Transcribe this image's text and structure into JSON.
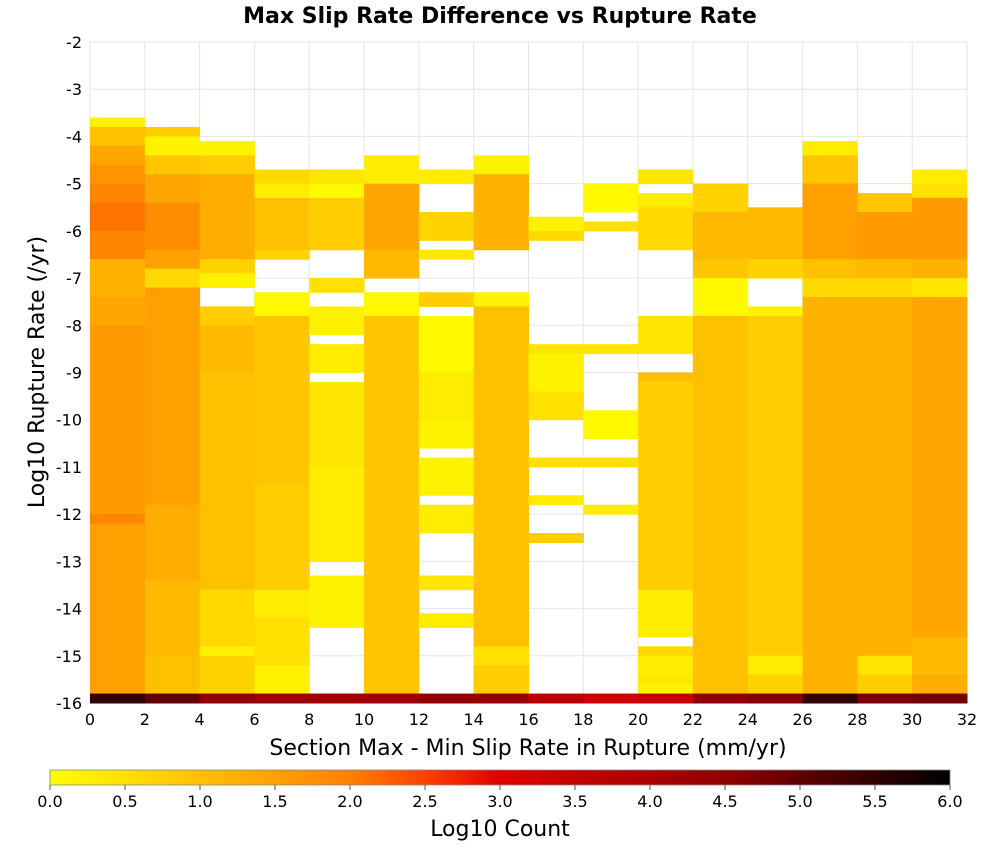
{
  "chart_data": {
    "type": "heatmap",
    "title": "Max Slip Rate Difference vs Rupture Rate",
    "xlabel": "Section Max - Min Slip Rate in Rupture (mm/yr)",
    "ylabel": "Log10 Rupture Rate (/yr)",
    "xlim": [
      0,
      32
    ],
    "ylim": [
      -16,
      -2
    ],
    "x_ticks": [
      "0",
      "2",
      "4",
      "6",
      "8",
      "10",
      "12",
      "14",
      "16",
      "18",
      "20",
      "22",
      "24",
      "26",
      "28",
      "30",
      "32"
    ],
    "y_ticks": [
      "-2",
      "-3",
      "-4",
      "-5",
      "-6",
      "-7",
      "-8",
      "-9",
      "-10",
      "-11",
      "-12",
      "-13",
      "-14",
      "-15",
      "-16"
    ],
    "x_bin_width": 2,
    "y_bin_height": 0.2,
    "bin_x_starts": [
      0,
      2,
      4,
      6,
      8,
      10,
      12,
      14,
      16,
      18,
      20,
      22,
      24,
      26,
      28,
      30
    ],
    "z_label": "Log10 Count",
    "z_range": [
      0,
      6
    ],
    "colorbar_ticks": [
      "0.0",
      "0.5",
      "1.0",
      "1.5",
      "2.0",
      "2.5",
      "3.0",
      "3.5",
      "4.0",
      "4.5",
      "5.0",
      "5.5",
      "6.0"
    ],
    "colorscale": [
      "#ffff00",
      "#ffc000",
      "#ff8000",
      "#ff4000",
      "#e00000",
      "#900000",
      "#000000"
    ],
    "grid": true,
    "columns": [
      {
        "x": 0,
        "y_top": -3.6,
        "data_rows": [
          {
            "from": -3.6,
            "to": -3.8,
            "value": 0.2
          },
          {
            "from": -3.8,
            "to": -4.2,
            "value": 1.0
          },
          {
            "from": -4.2,
            "to": -4.6,
            "value": 1.4
          },
          {
            "from": -4.6,
            "to": -5.0,
            "value": 1.7
          },
          {
            "from": -5.0,
            "to": -5.4,
            "value": 1.9
          },
          {
            "from": -5.4,
            "to": -6.0,
            "value": 2.1
          },
          {
            "from": -6.0,
            "to": -6.6,
            "value": 1.9
          },
          {
            "from": -6.6,
            "to": -7.4,
            "value": 1.2
          },
          {
            "from": -7.4,
            "to": -8.0,
            "value": 1.4
          },
          {
            "from": -8.0,
            "to": -12.0,
            "value": 1.6
          },
          {
            "from": -12.0,
            "to": -12.2,
            "value": 1.9
          },
          {
            "from": -12.2,
            "to": -15.8,
            "value": 1.5
          },
          {
            "from": -15.8,
            "to": -16.0,
            "value": 5.5
          }
        ]
      },
      {
        "x": 2,
        "y_top": -3.8,
        "data_rows": [
          {
            "from": -3.8,
            "to": -4.0,
            "value": 0.8
          },
          {
            "from": -4.0,
            "to": -4.4,
            "value": 0.2
          },
          {
            "from": -4.4,
            "to": -4.8,
            "value": 0.9
          },
          {
            "from": -4.8,
            "to": -5.4,
            "value": 1.4
          },
          {
            "from": -5.4,
            "to": -6.4,
            "value": 1.8
          },
          {
            "from": -6.4,
            "to": -6.8,
            "value": 1.5
          },
          {
            "from": -6.8,
            "to": -7.2,
            "value": 0.6
          },
          {
            "from": -7.2,
            "to": -11.8,
            "value": 1.5
          },
          {
            "from": -11.8,
            "to": -13.4,
            "value": 1.3
          },
          {
            "from": -13.4,
            "to": -15.0,
            "value": 1.1
          },
          {
            "from": -15.0,
            "to": -15.8,
            "value": 1.0
          },
          {
            "from": -15.8,
            "to": -16.0,
            "value": 5.0
          }
        ]
      },
      {
        "x": 4,
        "y_top": -4.1,
        "data_rows": [
          {
            "from": -4.1,
            "to": -4.4,
            "value": 0.2
          },
          {
            "from": -4.4,
            "to": -4.8,
            "value": 0.8
          },
          {
            "from": -4.8,
            "to": -6.6,
            "value": 1.3
          },
          {
            "from": -6.6,
            "to": -6.9,
            "value": 0.7
          },
          {
            "from": -6.9,
            "to": -7.2,
            "value": 0.2
          },
          {
            "from": -7.6,
            "to": -8.0,
            "value": 0.8
          },
          {
            "from": -8.0,
            "to": -9.0,
            "value": 1.1
          },
          {
            "from": -9.0,
            "to": -13.6,
            "value": 1.0
          },
          {
            "from": -13.6,
            "to": -14.8,
            "value": 0.6
          },
          {
            "from": -14.8,
            "to": -15.0,
            "value": 0.2
          },
          {
            "from": -15.0,
            "to": -15.8,
            "value": 0.7
          },
          {
            "from": -15.8,
            "to": -16.0,
            "value": 4.5
          }
        ]
      },
      {
        "x": 6,
        "y_top": -4.7,
        "data_rows": [
          {
            "from": -4.7,
            "to": -5.0,
            "value": 0.6
          },
          {
            "from": -5.0,
            "to": -5.3,
            "value": 0.3
          },
          {
            "from": -5.3,
            "to": -6.4,
            "value": 1.0
          },
          {
            "from": -6.4,
            "to": -6.6,
            "value": 0.7
          },
          {
            "from": -7.3,
            "to": -7.8,
            "value": 0.1
          },
          {
            "from": -7.8,
            "to": -11.4,
            "value": 0.9
          },
          {
            "from": -11.4,
            "to": -13.6,
            "value": 0.8
          },
          {
            "from": -13.6,
            "to": -14.2,
            "value": 0.3
          },
          {
            "from": -14.2,
            "to": -15.2,
            "value": 0.5
          },
          {
            "from": -15.2,
            "to": -15.8,
            "value": 0.2
          },
          {
            "from": -15.8,
            "to": -16.0,
            "value": 4.3
          }
        ]
      },
      {
        "x": 8,
        "y_top": -4.7,
        "data_rows": [
          {
            "from": -4.7,
            "to": -5.0,
            "value": 0.4
          },
          {
            "from": -5.0,
            "to": -5.3,
            "value": 0.1
          },
          {
            "from": -5.3,
            "to": -6.4,
            "value": 0.8
          },
          {
            "from": -7.0,
            "to": -7.3,
            "value": 0.5
          },
          {
            "from": -7.6,
            "to": -8.2,
            "value": 0.2
          },
          {
            "from": -8.4,
            "to": -9.0,
            "value": 0.3
          },
          {
            "from": -9.2,
            "to": -11.0,
            "value": 0.4
          },
          {
            "from": -11.0,
            "to": -13.0,
            "value": 0.3
          },
          {
            "from": -13.3,
            "to": -14.4,
            "value": 0.2
          },
          {
            "from": -15.8,
            "to": -16.0,
            "value": 4.2
          }
        ]
      },
      {
        "x": 10,
        "y_top": -4.4,
        "data_rows": [
          {
            "from": -4.4,
            "to": -5.0,
            "value": 0.3
          },
          {
            "from": -5.0,
            "to": -6.4,
            "value": 1.4
          },
          {
            "from": -6.4,
            "to": -7.0,
            "value": 1.1
          },
          {
            "from": -7.3,
            "to": -7.8,
            "value": 0.1
          },
          {
            "from": -7.8,
            "to": -15.8,
            "value": 0.9
          },
          {
            "from": -15.8,
            "to": -16.0,
            "value": 4.2
          }
        ]
      },
      {
        "x": 12,
        "y_top": -4.7,
        "data_rows": [
          {
            "from": -4.7,
            "to": -5.0,
            "value": 0.3
          },
          {
            "from": -5.6,
            "to": -6.2,
            "value": 0.7
          },
          {
            "from": -6.4,
            "to": -6.6,
            "value": 0.4
          },
          {
            "from": -7.3,
            "to": -7.6,
            "value": 0.8
          },
          {
            "from": -7.8,
            "to": -9.0,
            "value": 0.1
          },
          {
            "from": -9.0,
            "to": -10.0,
            "value": 0.3
          },
          {
            "from": -10.0,
            "to": -10.6,
            "value": 0.2
          },
          {
            "from": -10.8,
            "to": -11.6,
            "value": 0.2
          },
          {
            "from": -11.8,
            "to": -12.4,
            "value": 0.3
          },
          {
            "from": -13.3,
            "to": -13.6,
            "value": 0.4
          },
          {
            "from": -14.1,
            "to": -14.4,
            "value": 0.3
          },
          {
            "from": -15.8,
            "to": -16.0,
            "value": 4.5
          }
        ]
      },
      {
        "x": 14,
        "y_top": -4.4,
        "data_rows": [
          {
            "from": -4.4,
            "to": -4.8,
            "value": 0.2
          },
          {
            "from": -4.8,
            "to": -6.4,
            "value": 1.2
          },
          {
            "from": -7.3,
            "to": -7.6,
            "value": 0.2
          },
          {
            "from": -7.6,
            "to": -14.8,
            "value": 1.0
          },
          {
            "from": -14.8,
            "to": -15.2,
            "value": 0.5
          },
          {
            "from": -15.2,
            "to": -15.8,
            "value": 0.8
          },
          {
            "from": -15.8,
            "to": -16.0,
            "value": 4.4
          }
        ]
      },
      {
        "x": 16,
        "y_top": -5.7,
        "data_rows": [
          {
            "from": -5.7,
            "to": -6.0,
            "value": 0.2
          },
          {
            "from": -6.0,
            "to": -6.2,
            "value": 0.6
          },
          {
            "from": -8.4,
            "to": -8.6,
            "value": 0.4
          },
          {
            "from": -8.6,
            "to": -9.4,
            "value": 0.2
          },
          {
            "from": -9.4,
            "to": -10.0,
            "value": 0.5
          },
          {
            "from": -10.8,
            "to": -11.0,
            "value": 0.5
          },
          {
            "from": -11.6,
            "to": -11.8,
            "value": 0.3
          },
          {
            "from": -12.4,
            "to": -12.6,
            "value": 0.8
          },
          {
            "from": -15.8,
            "to": -16.0,
            "value": 3.7
          }
        ]
      },
      {
        "x": 18,
        "y_top": -5.0,
        "data_rows": [
          {
            "from": -5.0,
            "to": -5.6,
            "value": 0.1
          },
          {
            "from": -5.8,
            "to": -6.0,
            "value": 0.5
          },
          {
            "from": -8.4,
            "to": -8.6,
            "value": 0.4
          },
          {
            "from": -9.8,
            "to": -10.4,
            "value": 0.1
          },
          {
            "from": -10.8,
            "to": -11.0,
            "value": 0.5
          },
          {
            "from": -11.8,
            "to": -12.0,
            "value": 0.3
          },
          {
            "from": -15.8,
            "to": -16.0,
            "value": 3.3
          }
        ]
      },
      {
        "x": 20,
        "y_top": -4.7,
        "data_rows": [
          {
            "from": -4.7,
            "to": -5.0,
            "value": 0.4
          },
          {
            "from": -5.2,
            "to": -5.5,
            "value": 0.3
          },
          {
            "from": -5.5,
            "to": -6.4,
            "value": 0.6
          },
          {
            "from": -7.8,
            "to": -8.6,
            "value": 0.4
          },
          {
            "from": -9.0,
            "to": -9.2,
            "value": 1.0
          },
          {
            "from": -9.2,
            "to": -13.6,
            "value": 0.8
          },
          {
            "from": -13.6,
            "to": -14.6,
            "value": 0.3
          },
          {
            "from": -14.8,
            "to": -15.0,
            "value": 0.6
          },
          {
            "from": -15.0,
            "to": -15.4,
            "value": 0.3
          },
          {
            "from": -15.4,
            "to": -15.6,
            "value": 0.4
          },
          {
            "from": -15.6,
            "to": -15.8,
            "value": 0.2
          },
          {
            "from": -15.8,
            "to": -16.0,
            "value": 3.5
          }
        ]
      },
      {
        "x": 22,
        "y_top": -5.0,
        "data_rows": [
          {
            "from": -5.0,
            "to": -5.6,
            "value": 0.7
          },
          {
            "from": -5.6,
            "to": -6.6,
            "value": 1.1
          },
          {
            "from": -6.6,
            "to": -7.0,
            "value": 0.9
          },
          {
            "from": -7.0,
            "to": -7.8,
            "value": 0.1
          },
          {
            "from": -7.8,
            "to": -15.8,
            "value": 1.0
          },
          {
            "from": -15.8,
            "to": -16.0,
            "value": 4.5
          }
        ]
      },
      {
        "x": 24,
        "y_top": -5.5,
        "data_rows": [
          {
            "from": -5.5,
            "to": -6.6,
            "value": 1.1
          },
          {
            "from": -6.6,
            "to": -7.0,
            "value": 0.7
          },
          {
            "from": -7.6,
            "to": -7.8,
            "value": 0.2
          },
          {
            "from": -7.8,
            "to": -15.0,
            "value": 0.8
          },
          {
            "from": -15.0,
            "to": -15.4,
            "value": 0.3
          },
          {
            "from": -15.4,
            "to": -15.8,
            "value": 0.7
          },
          {
            "from": -15.8,
            "to": -16.0,
            "value": 4.6
          }
        ]
      },
      {
        "x": 26,
        "y_top": -4.1,
        "data_rows": [
          {
            "from": -4.1,
            "to": -4.4,
            "value": 0.3
          },
          {
            "from": -4.4,
            "to": -5.0,
            "value": 0.9
          },
          {
            "from": -5.0,
            "to": -6.6,
            "value": 1.5
          },
          {
            "from": -6.6,
            "to": -7.0,
            "value": 1.0
          },
          {
            "from": -7.0,
            "to": -7.4,
            "value": 0.6
          },
          {
            "from": -7.4,
            "to": -15.8,
            "value": 1.2
          },
          {
            "from": -15.8,
            "to": -16.0,
            "value": 5.5
          }
        ]
      },
      {
        "x": 28,
        "y_top": -5.2,
        "data_rows": [
          {
            "from": -5.2,
            "to": -5.6,
            "value": 0.9
          },
          {
            "from": -5.6,
            "to": -6.6,
            "value": 1.6
          },
          {
            "from": -6.6,
            "to": -7.0,
            "value": 1.1
          },
          {
            "from": -7.0,
            "to": -7.4,
            "value": 0.6
          },
          {
            "from": -7.4,
            "to": -15.0,
            "value": 1.2
          },
          {
            "from": -15.0,
            "to": -15.4,
            "value": 0.4
          },
          {
            "from": -15.4,
            "to": -15.8,
            "value": 0.8
          },
          {
            "from": -15.8,
            "to": -16.0,
            "value": 4.7
          }
        ]
      },
      {
        "x": 30,
        "y_top": -4.7,
        "data_rows": [
          {
            "from": -4.7,
            "to": -5.0,
            "value": 0.3
          },
          {
            "from": -5.0,
            "to": -5.3,
            "value": 0.5
          },
          {
            "from": -5.3,
            "to": -6.6,
            "value": 1.6
          },
          {
            "from": -6.6,
            "to": -7.0,
            "value": 1.2
          },
          {
            "from": -7.0,
            "to": -7.4,
            "value": 0.4
          },
          {
            "from": -7.4,
            "to": -14.6,
            "value": 1.4
          },
          {
            "from": -14.6,
            "to": -15.4,
            "value": 1.1
          },
          {
            "from": -15.4,
            "to": -15.8,
            "value": 1.3
          },
          {
            "from": -15.8,
            "to": -16.0,
            "value": 4.8
          }
        ]
      }
    ]
  }
}
